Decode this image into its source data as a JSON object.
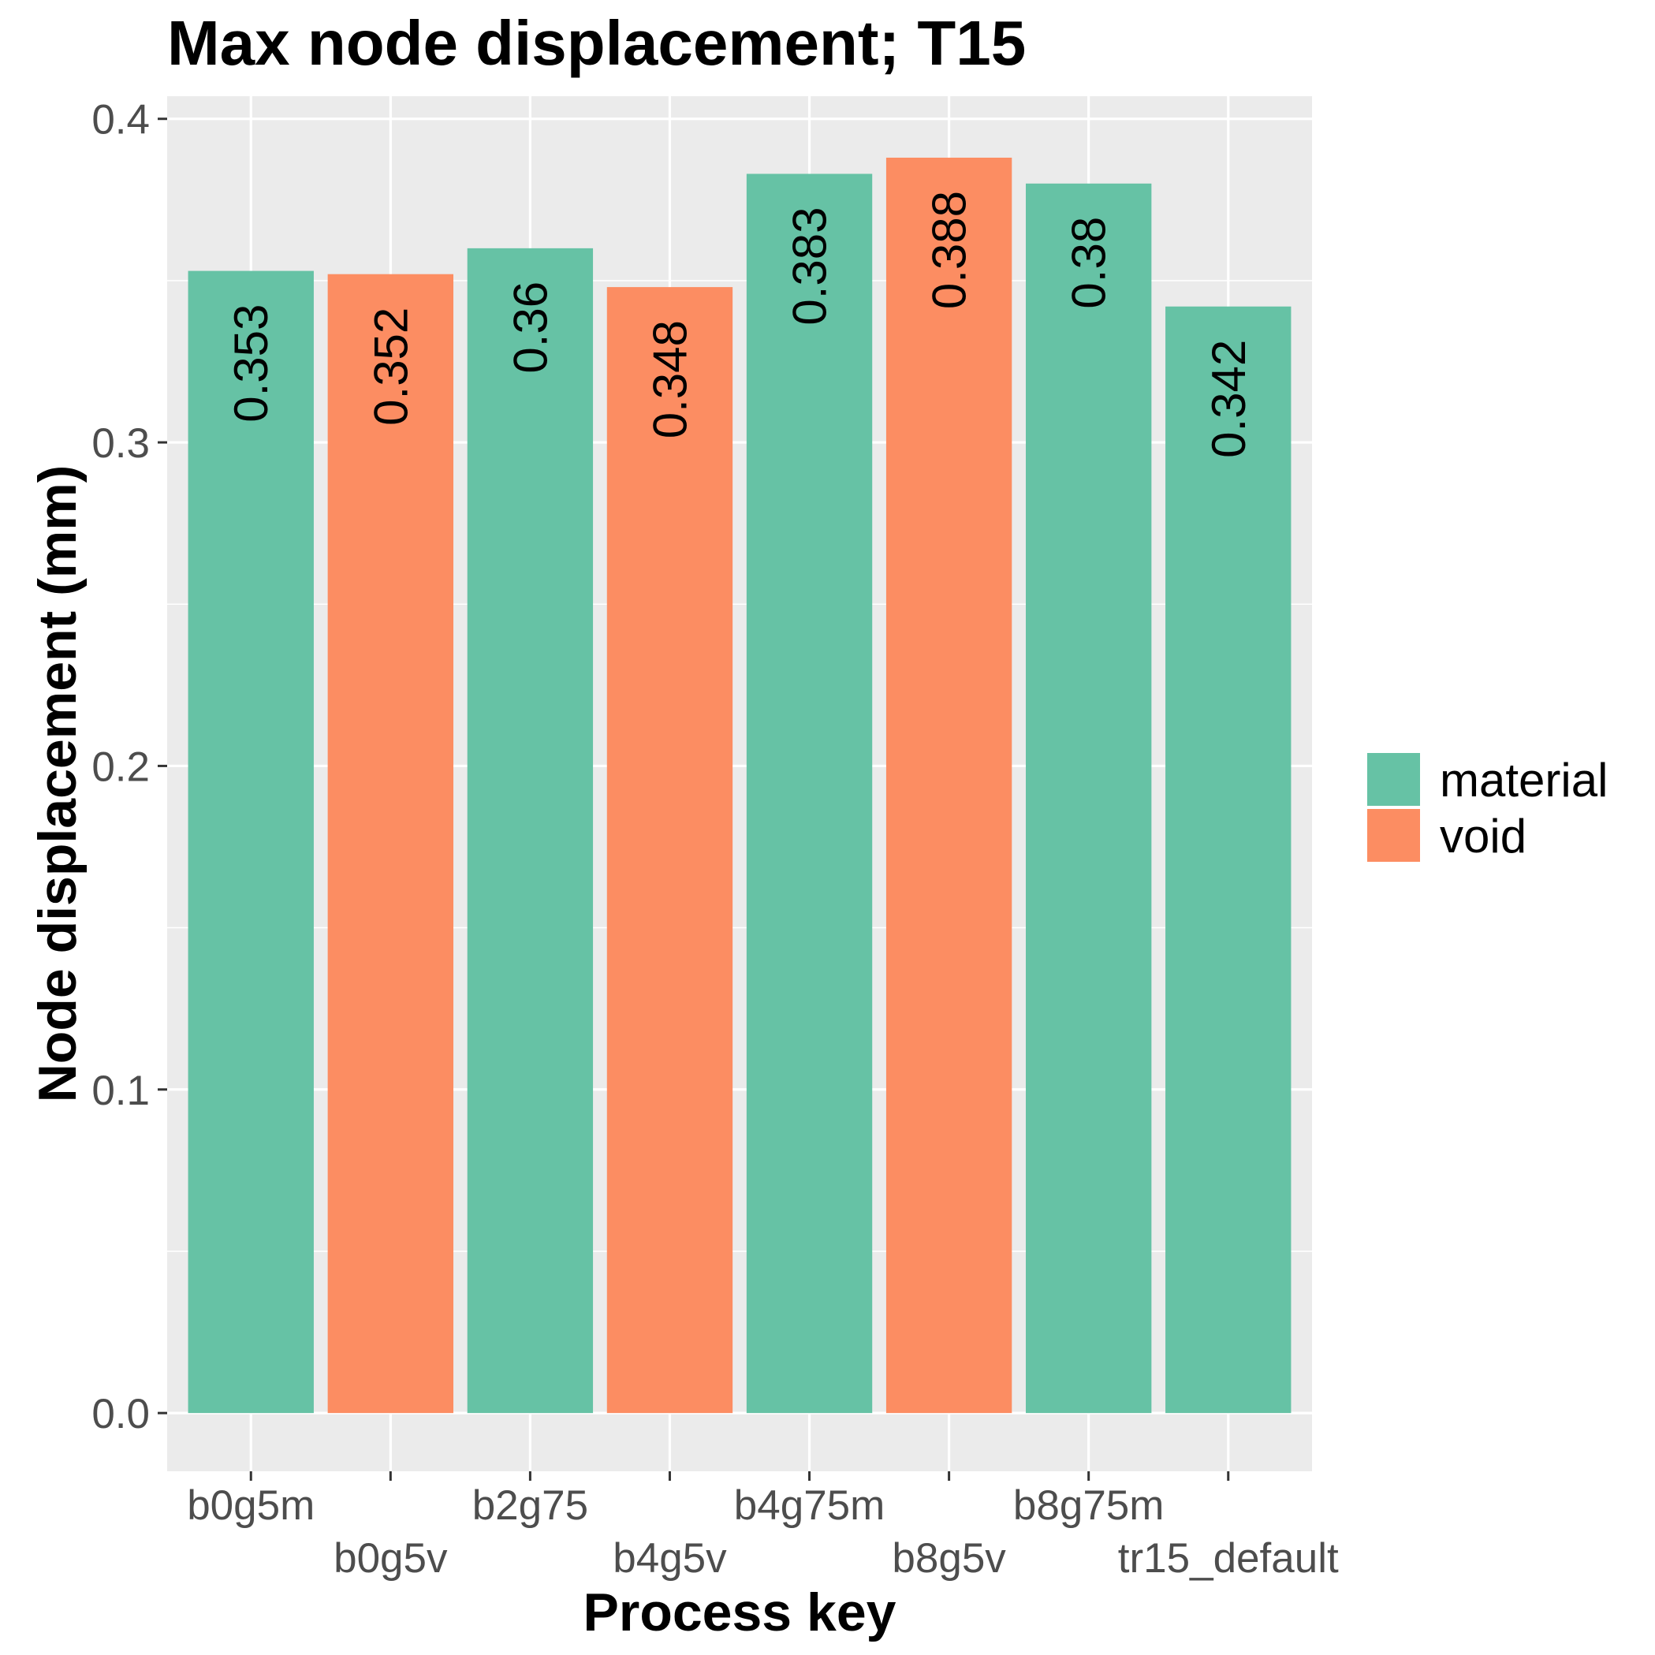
{
  "chart_data": {
    "type": "bar",
    "title": "Max node displacement; T15",
    "xlabel": "Process key",
    "ylabel": "Node displacement (mm)",
    "categories": [
      "b0g5m",
      "b0g5v",
      "b2g75",
      "b4g5v",
      "b4g75m",
      "b8g5v",
      "b8g75m",
      "tr15_default"
    ],
    "values": [
      0.353,
      0.352,
      0.36,
      0.348,
      0.383,
      0.388,
      0.38,
      0.342
    ],
    "value_labels": [
      "0.353",
      "0.352",
      "0.36",
      "0.348",
      "0.383",
      "0.388",
      "0.38",
      "0.342"
    ],
    "groups": [
      "material",
      "void",
      "material",
      "void",
      "material",
      "void",
      "material",
      "material"
    ],
    "ylim": [
      -0.018,
      0.407
    ],
    "yticks": [
      0.0,
      0.1,
      0.2,
      0.3,
      0.4
    ],
    "ytick_labels": [
      "0.0",
      "0.1",
      "0.2",
      "0.3",
      "0.4"
    ],
    "grid": true,
    "legend": {
      "position": "right",
      "entries": [
        {
          "name": "material",
          "color": "#66c2a5"
        },
        {
          "name": "void",
          "color": "#fc8d62"
        }
      ]
    },
    "colors": {
      "material": "#66c2a5",
      "void": "#fc8d62",
      "panel_background": "#ebebeb",
      "grid": "#ffffff"
    }
  }
}
